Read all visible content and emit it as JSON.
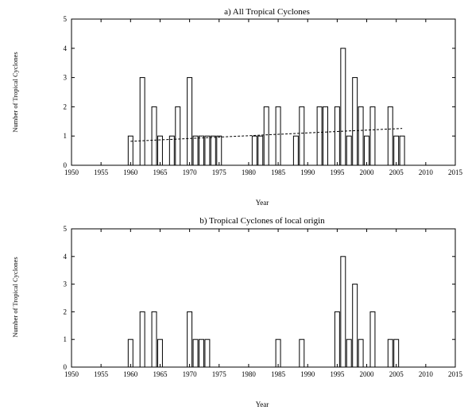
{
  "chart_data": [
    {
      "type": "bar",
      "title": "a) All Tropical Cyclones",
      "xlabel": "Year",
      "ylabel": "Number of Tropical Cyclones",
      "xlim": [
        1950,
        2015
      ],
      "ylim": [
        0,
        5
      ],
      "xticks": [
        "1950",
        "1955",
        "1960",
        "1965",
        "1970",
        "1975",
        "1980",
        "1985",
        "1990",
        "1995",
        "2000",
        "2005",
        "2010",
        "2015"
      ],
      "yticks": [
        "0",
        "1",
        "2",
        "3",
        "4",
        "5"
      ],
      "grid": false,
      "x": [
        1960,
        1962,
        1964,
        1965,
        1967,
        1968,
        1970,
        1971,
        1972,
        1973,
        1974,
        1975,
        1981,
        1982,
        1983,
        1985,
        1988,
        1989,
        1992,
        1993,
        1995,
        1996,
        1997,
        1998,
        1999,
        2000,
        2001,
        2004,
        2005,
        2006
      ],
      "values": [
        1,
        3,
        2,
        1,
        1,
        2,
        3,
        1,
        1,
        1,
        1,
        1,
        1,
        1,
        2,
        2,
        1,
        2,
        2,
        2,
        2,
        4,
        1,
        3,
        2,
        1,
        2,
        2,
        1,
        1
      ],
      "trendline": {
        "style": "dashed",
        "x": [
          1960,
          2006
        ],
        "y": [
          0.82,
          1.26
        ]
      }
    },
    {
      "type": "bar",
      "title": "b) Tropical Cyclones of local origin",
      "xlabel": "Year",
      "ylabel": "Number of Tropical Cyclones",
      "xlim": [
        1950,
        2015
      ],
      "ylim": [
        0,
        5
      ],
      "xticks": [
        "1950",
        "1955",
        "1960",
        "1965",
        "1970",
        "1975",
        "1980",
        "1985",
        "1990",
        "1995",
        "2000",
        "2005",
        "2010",
        "2015"
      ],
      "yticks": [
        "0",
        "1",
        "2",
        "3",
        "4",
        "5"
      ],
      "grid": false,
      "x": [
        1960,
        1962,
        1964,
        1965,
        1970,
        1971,
        1972,
        1973,
        1985,
        1989,
        1995,
        1996,
        1997,
        1998,
        1999,
        2001,
        2004,
        2005
      ],
      "values": [
        1,
        2,
        2,
        1,
        2,
        1,
        1,
        1,
        1,
        1,
        2,
        4,
        1,
        3,
        1,
        2,
        1,
        1
      ]
    }
  ]
}
